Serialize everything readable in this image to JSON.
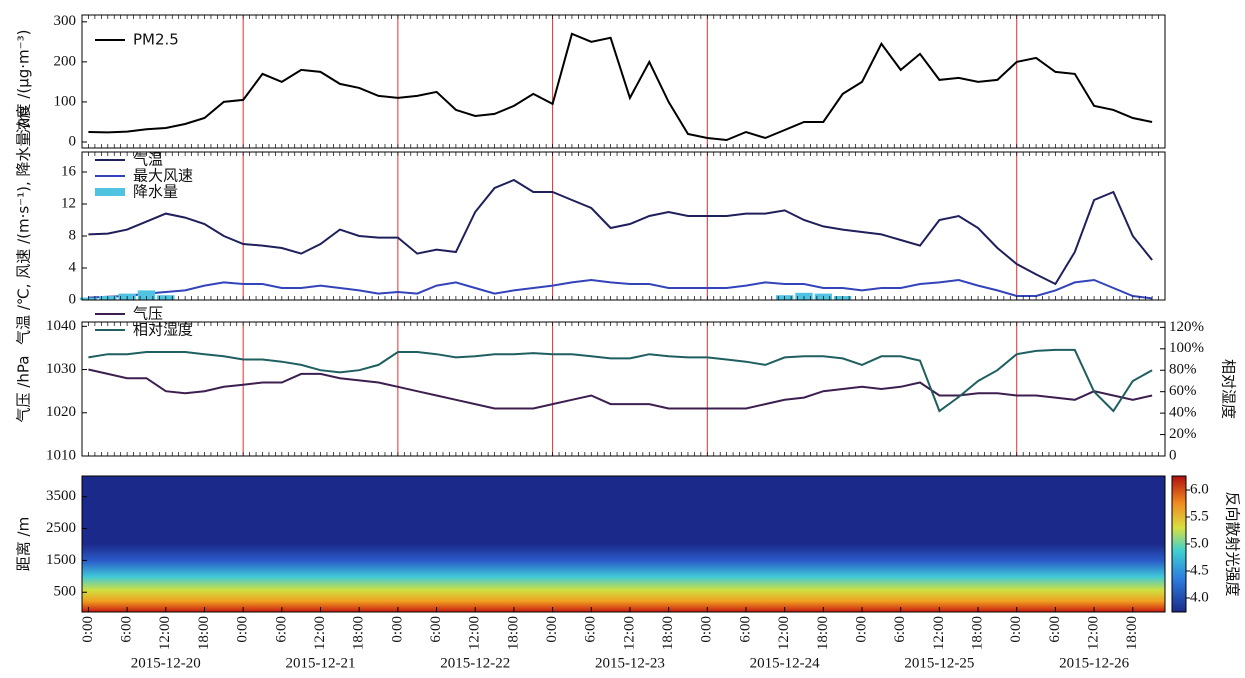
{
  "chart_data": [
    {
      "type": "line",
      "ylabel": "浓度 /(μg·m⁻³)",
      "ylim": [
        -15,
        317
      ],
      "yticks": [
        0,
        100,
        200,
        300
      ],
      "legend": "upper left",
      "vlines": [
        24,
        48,
        72,
        96,
        144
      ],
      "x": [
        0,
        3,
        6,
        9,
        12,
        15,
        18,
        21,
        24,
        27,
        30,
        33,
        36,
        39,
        42,
        45,
        48,
        51,
        54,
        57,
        60,
        63,
        66,
        69,
        72,
        75,
        78,
        81,
        84,
        87,
        90,
        93,
        96,
        99,
        102,
        105,
        108,
        111,
        114,
        117,
        120,
        123,
        126,
        129,
        132,
        135,
        138,
        141,
        144,
        147,
        150,
        153,
        156,
        159,
        162,
        165
      ],
      "series": [
        {
          "name": "PM2.5",
          "color": "#000000",
          "values": [
            25,
            24,
            26,
            32,
            35,
            45,
            60,
            100,
            105,
            170,
            150,
            180,
            175,
            145,
            135,
            115,
            110,
            115,
            125,
            80,
            65,
            70,
            90,
            120,
            95,
            270,
            250,
            260,
            110,
            200,
            100,
            20,
            10,
            5,
            25,
            10,
            30,
            50,
            50,
            120,
            150,
            245,
            180,
            220,
            155,
            160,
            150,
            155,
            200,
            210,
            175,
            170,
            90,
            80,
            60,
            50
          ]
        }
      ]
    },
    {
      "type": "line",
      "ylabel": "气温 /℃, 风速 /(m·s⁻¹), 降水量 /m",
      "ylim": [
        0,
        18.5
      ],
      "yticks": [
        0,
        4,
        8,
        12,
        16
      ],
      "legend": "upper left",
      "vlines": [
        24,
        48,
        72,
        96,
        144
      ],
      "x": [
        0,
        3,
        6,
        9,
        12,
        15,
        18,
        21,
        24,
        27,
        30,
        33,
        36,
        39,
        42,
        45,
        48,
        51,
        54,
        57,
        60,
        63,
        66,
        69,
        72,
        75,
        78,
        81,
        84,
        87,
        90,
        93,
        96,
        99,
        102,
        105,
        108,
        111,
        114,
        117,
        120,
        123,
        126,
        129,
        132,
        135,
        138,
        141,
        144,
        147,
        150,
        153,
        156,
        159,
        162,
        165
      ],
      "series": [
        {
          "name": "气温",
          "color": "#1f1f5c",
          "values": [
            8.2,
            8.3,
            8.8,
            9.8,
            10.8,
            10.3,
            9.5,
            8.0,
            7.0,
            6.8,
            6.5,
            5.8,
            7.0,
            8.8,
            8.0,
            7.8,
            7.8,
            5.8,
            6.3,
            6.0,
            11,
            14,
            15,
            13.5,
            13.5,
            12.5,
            11.5,
            9,
            9.5,
            10.5,
            11,
            10.5,
            10.5,
            10.5,
            10.8,
            10.8,
            11.2,
            10,
            9.2,
            8.8,
            8.5,
            8.2,
            7.5,
            6.8,
            10,
            10.5,
            9,
            6.5,
            4.5,
            3.2,
            2.0,
            6,
            12.5,
            13.5,
            8,
            5
          ]
        },
        {
          "name": "最大风速",
          "color": "#3344bb",
          "values": [
            0.3,
            0.4,
            0.5,
            0.8,
            1.0,
            1.2,
            1.8,
            2.2,
            2.0,
            2.0,
            1.5,
            1.5,
            1.8,
            1.5,
            1.2,
            0.8,
            1.0,
            0.8,
            1.8,
            2.2,
            1.5,
            0.8,
            1.2,
            1.5,
            1.8,
            2.2,
            2.5,
            2.2,
            2.0,
            2.0,
            1.5,
            1.5,
            1.5,
            1.5,
            1.8,
            2.2,
            2.0,
            2.0,
            1.5,
            1.5,
            1.2,
            1.5,
            1.5,
            2.0,
            2.2,
            2.5,
            1.8,
            1.2,
            0.5,
            0.5,
            1.2,
            2.2,
            2.5,
            1.5,
            0.5,
            0.2
          ]
        },
        {
          "name": "降水量",
          "color": "#4fc3e0",
          "type": "bar",
          "values": [
            0.3,
            0.5,
            0.8,
            1.2,
            0.6,
            0,
            0,
            0,
            0,
            0,
            0,
            0,
            0,
            0,
            0,
            0,
            0,
            0,
            0,
            0,
            0,
            0,
            0,
            0,
            0,
            0,
            0,
            0,
            0,
            0,
            0,
            0,
            0,
            0,
            0,
            0,
            0.6,
            0.9,
            0.8,
            0.5,
            0,
            0,
            0,
            0,
            0,
            0,
            0,
            0,
            0,
            0,
            0,
            0,
            0,
            0,
            0,
            0
          ]
        }
      ]
    },
    {
      "type": "line",
      "ylabel": "气压 /hPa",
      "y2label": "相对湿度",
      "ylim": [
        1010,
        1041
      ],
      "yticks": [
        1010,
        1020,
        1030,
        1040
      ],
      "y2lim": [
        0,
        125
      ],
      "y2ticks": [
        0,
        {
          "value": 20,
          "label": "20%"
        },
        {
          "value": 40,
          "label": "40%"
        },
        {
          "value": 60,
          "label": "60%"
        },
        {
          "value": 80,
          "label": "80%"
        },
        {
          "value": 100,
          "label": "100%"
        },
        {
          "value": 120,
          "label": "120%"
        }
      ],
      "legend": "upper left",
      "vlines": [
        24,
        48,
        72,
        96,
        144
      ],
      "x": [
        0,
        3,
        6,
        9,
        12,
        15,
        18,
        21,
        24,
        27,
        30,
        33,
        36,
        39,
        42,
        45,
        48,
        51,
        54,
        57,
        60,
        63,
        66,
        69,
        72,
        75,
        78,
        81,
        84,
        87,
        90,
        93,
        96,
        99,
        102,
        105,
        108,
        111,
        114,
        117,
        120,
        123,
        126,
        129,
        132,
        135,
        138,
        141,
        144,
        147,
        150,
        153,
        156,
        159,
        162,
        165
      ],
      "series": [
        {
          "name": "气压",
          "color": "#3d1f4f",
          "values": [
            1030,
            1029,
            1028,
            1028,
            1025,
            1024.5,
            1025,
            1026,
            1026.5,
            1027,
            1027,
            1029,
            1029,
            1028,
            1027.5,
            1027,
            1026,
            1025,
            1024,
            1023,
            1022,
            1021,
            1021,
            1021,
            1022,
            1023,
            1024,
            1022,
            1022,
            1022,
            1021,
            1021,
            1021,
            1021,
            1021,
            1022,
            1023,
            1023.5,
            1025,
            1025.5,
            1026,
            1025.5,
            1026,
            1027,
            1024,
            1024,
            1024.5,
            1024.5,
            1024,
            1024,
            1023.5,
            1023,
            1025,
            1024,
            1023,
            1024
          ]
        },
        {
          "name": "相对湿度",
          "color": "#1f5f5f",
          "axis": "y2",
          "values": [
            92,
            95,
            95,
            97,
            97,
            97,
            95,
            93,
            90,
            90,
            88,
            85,
            80,
            78,
            80,
            85,
            97,
            97,
            95,
            92,
            93,
            95,
            95,
            96,
            95,
            95,
            93,
            91,
            91,
            95,
            93,
            92,
            92,
            90,
            88,
            85,
            92,
            93,
            93,
            91,
            85,
            93,
            93,
            89,
            42,
            55,
            70,
            80,
            95,
            98,
            99,
            99,
            60,
            42,
            70,
            80
          ]
        }
      ]
    },
    {
      "type": "heatmap",
      "ylabel": "距离 /m",
      "ylim": [
        -120,
        4150
      ],
      "yticks": [
        500,
        1500,
        2500,
        3500
      ],
      "xlim": [
        -1,
        167
      ],
      "xticks": [
        {
          "value": 0,
          "label": "0:00"
        },
        {
          "value": 6,
          "label": "6:00"
        },
        {
          "value": 12,
          "label": "12:00"
        },
        {
          "value": 18,
          "label": "18:00"
        },
        {
          "value": 24,
          "label": "0:00"
        },
        {
          "value": 30,
          "label": "6:00"
        },
        {
          "value": 36,
          "label": "12:00"
        },
        {
          "value": 42,
          "label": "18:00"
        },
        {
          "value": 48,
          "label": "0:00"
        },
        {
          "value": 54,
          "label": "6:00"
        },
        {
          "value": 60,
          "label": "12:00"
        },
        {
          "value": 66,
          "label": "18:00"
        },
        {
          "value": 72,
          "label": "0:00"
        },
        {
          "value": 78,
          "label": "6:00"
        },
        {
          "value": 84,
          "label": "12:00"
        },
        {
          "value": 90,
          "label": "18:00"
        },
        {
          "value": 96,
          "label": "0:00"
        },
        {
          "value": 102,
          "label": "6:00"
        },
        {
          "value": 108,
          "label": "12:00"
        },
        {
          "value": 114,
          "label": "18:00"
        },
        {
          "value": 120,
          "label": "0:00"
        },
        {
          "value": 126,
          "label": "6:00"
        },
        {
          "value": 132,
          "label": "12:00"
        },
        {
          "value": 138,
          "label": "18:00"
        },
        {
          "value": 144,
          "label": "0:00"
        },
        {
          "value": 150,
          "label": "6:00"
        },
        {
          "value": 156,
          "label": "12:00"
        },
        {
          "value": 162,
          "label": "18:00"
        }
      ],
      "dates": [
        "2015-12-20",
        "2015-12-21",
        "2015-12-22",
        "2015-12-23",
        "2015-12-24",
        "2015-12-25",
        "2015-12-26"
      ],
      "colorbar": {
        "label": "反向散射光强度",
        "clim": [
          3.74,
          6.26
        ],
        "ticks": [
          {
            "value": 4,
            "label": "4.0"
          },
          {
            "value": 4.5,
            "label": "4.5"
          },
          {
            "value": 5,
            "label": "5.0"
          },
          {
            "value": 5.5,
            "label": "5.5"
          },
          {
            "value": 6,
            "label": "6.0"
          }
        ]
      }
    }
  ]
}
